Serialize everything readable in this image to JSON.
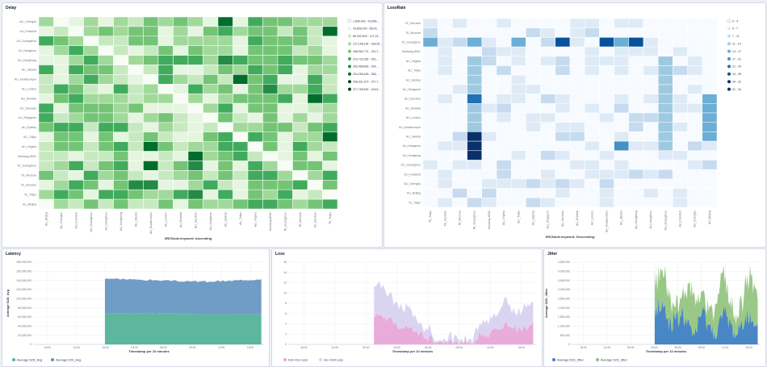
{
  "delay": {
    "title": "Delay",
    "ylabels": [
      "ALI_Chengdu",
      "ALI_Frankfurt",
      "ALI_Guangzhou",
      "ALI_Hangzhou",
      "ALI_HongKong",
      "ALI_Jakarta",
      "ALI_KualaLumpur",
      "ALI_London",
      "ALI_Mumbai",
      "ALI_SanJose",
      "ALI_Singapore",
      "ALI_Sydney",
      "ALI_Tokyo",
      "ALI_Virginia",
      "Hanbang-IDNC",
      "TE_Guangzhou",
      "TE_Moscow",
      "TE_SanJose",
      "TE_Tokyo",
      "ALI_Beijing"
    ],
    "xlabels": [
      "ALI_Beijing",
      "ALI_Chengdu",
      "ALI_Frankfurt",
      "ALI_Guangzhou",
      "ALI_Hangzhou",
      "ALI_HongKong",
      "ALI_Jakarta",
      "ALI_KualaLumpur",
      "ALI_London",
      "ALI_Mumbai",
      "ALI_SanJose",
      "ALI_Singapore",
      "ALI_Sydney",
      "ALI_Tokyo",
      "ALI_Virginia",
      "Hanbang-IDNC",
      "TE_Guangzhou",
      "TE_Moscow",
      "TE_SanJose",
      "TE_Tokyo"
    ],
    "xaxis_title": "SRCNode.keyword: Ascending",
    "legend": [
      "1,896,443 - 43,666,...",
      "43,666,039 - 85,43...",
      "85,432,503 - 127,19...",
      "127,198,154 - 168,96...",
      "168,963,774 - 210,7...",
      "210,732,282 - 252,...",
      "252,498,846 - 294,...",
      "294,265,409 - 336,...",
      "336,031,972 - 377,7...",
      "377,798,532 - 419,5..."
    ],
    "colors": [
      "#f7fcf5",
      "#e5f5e0",
      "#c7e9c0",
      "#a1d99b",
      "#74c476",
      "#41ab5d",
      "#238b45",
      "#006d2c",
      "#00441b",
      "#00441b"
    ]
  },
  "lossrate": {
    "title": "LossRate",
    "ylabels": [
      "TE_SanJose",
      "TE_Moscow",
      "TE_Guangzhou",
      "Hanbang-IDNC",
      "ALI_Virginia",
      "ALI_Tokyo",
      "ALI_Sydney",
      "ALI_Singapore",
      "ALI_SanJose",
      "ALI_Mumbai",
      "ALI_London",
      "ALI_KualaLumpur",
      "ALI_Jakarta",
      "ALI_Hangzhou",
      "ALI_Hongkong",
      "ALI_Guangzhou",
      "ALI_Frankfurt",
      "ALI_Chengdu",
      "ALI_Beijing",
      "TE_Tokyo"
    ],
    "xlabels": [
      "TE_Tokyo",
      "TE_SanJose",
      "TE_Moscow",
      "TE_Guangzhou",
      "Hanbang-IDNC",
      "ALI_Virginia",
      "ALI_Tokyo",
      "ALI_Sydney",
      "ALI_Singapore",
      "ALI_SanJose",
      "ALI_Mumbai",
      "ALI_London",
      "ALI_KualaLumpur",
      "ALI_Jakarta",
      "ALI_HongKong",
      "ALI_Hangzhou",
      "ALI_Guangzhou",
      "ALI_Frankfurt",
      "ALI_Chengdu",
      "ALI_Beijing"
    ],
    "xaxis_title": "SRCNode.keyword: Descending",
    "legend": [
      "0 - 4",
      "4 - 7",
      "7 - 11",
      "11 - 14",
      "14 - 17",
      "17 - 21",
      "21 - 24",
      "24 - 28",
      "28 - 31",
      "31 - 34"
    ],
    "colors": [
      "#f7fbff",
      "#deebf7",
      "#c6dbef",
      "#9ecae1",
      "#6baed6",
      "#4292c6",
      "#2171b5",
      "#08519c",
      "#08306b",
      "#08306b"
    ]
  },
  "latency": {
    "title": "Latency",
    "yticks": [
      "180,000,000",
      "160,000,000",
      "140,000,000",
      "120,000,000",
      "100,000,000",
      "80,000,000",
      "60,000,000",
      "40,000,000",
      "20,000,000",
      "0"
    ],
    "xticks": [
      "18:00",
      "21:00",
      "00:00",
      "03:00",
      "06:00",
      "09:00",
      "12:00",
      "15:00"
    ],
    "ylabel": "Average S2D_Avg",
    "xlabel": "Timestamp per 10 minutes",
    "legend": [
      {
        "label": "Average S2D_Avg",
        "color": "#54b399"
      },
      {
        "label": "Average D2S_Avg",
        "color": "#6092c0"
      }
    ]
  },
  "loss": {
    "title": "Loss",
    "yticks": [
      "16",
      "14",
      "12",
      "10",
      "8",
      "6",
      "4",
      "2",
      "0"
    ],
    "xticks": [
      "18:00",
      "21:00",
      "00:00",
      "03:00",
      "06:00",
      "09:00",
      "12:00",
      "15:00"
    ],
    "ylabel": "Average D2S_Loss",
    "xlabel": "Timestamp per 10 minutes",
    "legend": [
      {
        "label": "Dst->Src Loss",
        "color": "#e7a6d8"
      },
      {
        "label": "Src->Dst Loss",
        "color": "#d9d2f0"
      }
    ]
  },
  "jitter": {
    "title": "Jitter",
    "yticks": [
      "4,500,000",
      "4,000,000",
      "3,500,000",
      "3,000,000",
      "2,500,000",
      "2,000,000",
      "1,500,000",
      "1,000,000",
      "500,000",
      "0"
    ],
    "xticks": [
      "18:00",
      "21:00",
      "00:00",
      "03:00",
      "06:00",
      "09:00",
      "12:00",
      "15:00"
    ],
    "ylabel": "Average S2D_Jitter",
    "xlabel": "Timestamp per 10 minutes",
    "legend": [
      {
        "label": "Average D2S_Jitter",
        "color": "#3f7fc2"
      },
      {
        "label": "Average S2D_Jitter",
        "color": "#8fc27a"
      }
    ]
  }
}
